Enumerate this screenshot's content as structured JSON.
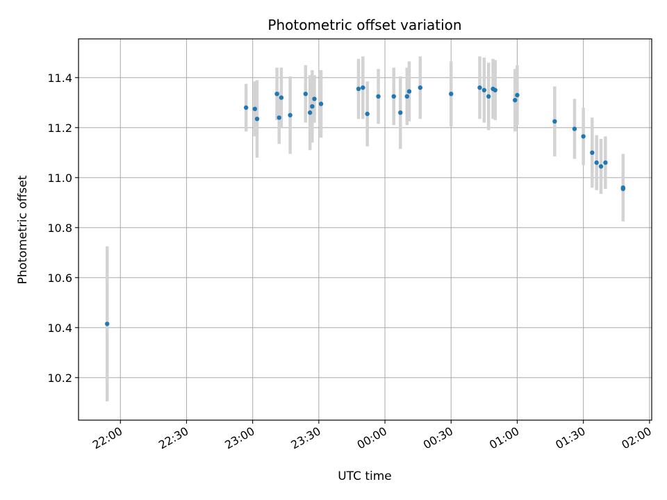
{
  "chart_data": {
    "type": "scatter",
    "title": "Photometric offset variation",
    "xlabel": "UTC time",
    "ylabel": "Photometric offset",
    "grid": true,
    "x_ticks": [
      "22:00",
      "22:30",
      "23:00",
      "23:30",
      "00:00",
      "00:30",
      "01:00",
      "01:30",
      "02:00"
    ],
    "y_ticks": [
      "10.2",
      "10.4",
      "10.6",
      "10.8",
      "11.0",
      "11.2",
      "11.4"
    ],
    "xlim": [
      "21:41",
      "02:01"
    ],
    "ylim": [
      10.03,
      11.555
    ],
    "colors": {
      "point": "#1f77b4",
      "errorbar": "#d3d3d3",
      "grid": "#b0b0b0"
    },
    "points": [
      {
        "t": "21:54",
        "y": 10.415,
        "err": 0.31
      },
      {
        "t": "22:57",
        "y": 11.28,
        "err": 0.095
      },
      {
        "t": "23:01",
        "y": 11.275,
        "err": 0.11
      },
      {
        "t": "23:02",
        "y": 11.235,
        "err": 0.155
      },
      {
        "t": "23:11",
        "y": 11.335,
        "err": 0.105
      },
      {
        "t": "23:12",
        "y": 11.24,
        "err": 0.105
      },
      {
        "t": "23:13",
        "y": 11.32,
        "err": 0.12
      },
      {
        "t": "23:17",
        "y": 11.25,
        "err": 0.155
      },
      {
        "t": "23:24",
        "y": 11.335,
        "err": 0.115
      },
      {
        "t": "23:26",
        "y": 11.26,
        "err": 0.15
      },
      {
        "t": "23:27",
        "y": 11.285,
        "err": 0.145
      },
      {
        "t": "23:28",
        "y": 11.315,
        "err": 0.095
      },
      {
        "t": "23:31",
        "y": 11.295,
        "err": 0.135
      },
      {
        "t": "23:48",
        "y": 11.355,
        "err": 0.12
      },
      {
        "t": "23:50",
        "y": 11.36,
        "err": 0.125
      },
      {
        "t": "23:52",
        "y": 11.255,
        "err": 0.13
      },
      {
        "t": "23:57",
        "y": 11.325,
        "err": 0.11
      },
      {
        "t": "00:04",
        "y": 11.325,
        "err": 0.115
      },
      {
        "t": "00:07",
        "y": 11.26,
        "err": 0.145
      },
      {
        "t": "00:10",
        "y": 11.325,
        "err": 0.115
      },
      {
        "t": "00:11",
        "y": 11.345,
        "err": 0.12
      },
      {
        "t": "00:16",
        "y": 11.36,
        "err": 0.125
      },
      {
        "t": "00:30",
        "y": 11.335,
        "err": 0.13
      },
      {
        "t": "00:43",
        "y": 11.36,
        "err": 0.125
      },
      {
        "t": "00:45",
        "y": 11.35,
        "err": 0.13
      },
      {
        "t": "00:47",
        "y": 11.325,
        "err": 0.135
      },
      {
        "t": "00:49",
        "y": 11.355,
        "err": 0.12
      },
      {
        "t": "00:50",
        "y": 11.35,
        "err": 0.12
      },
      {
        "t": "00:59",
        "y": 11.31,
        "err": 0.125
      },
      {
        "t": "01:00",
        "y": 11.33,
        "err": 0.12
      },
      {
        "t": "01:17",
        "y": 11.225,
        "err": 0.14
      },
      {
        "t": "01:26",
        "y": 11.195,
        "err": 0.12
      },
      {
        "t": "01:30",
        "y": 11.165,
        "err": 0.115
      },
      {
        "t": "01:34",
        "y": 11.1,
        "err": 0.14
      },
      {
        "t": "01:36",
        "y": 11.06,
        "err": 0.11
      },
      {
        "t": "01:38",
        "y": 11.045,
        "err": 0.11
      },
      {
        "t": "01:40",
        "y": 11.06,
        "err": 0.105
      },
      {
        "t": "01:48",
        "y": 10.955,
        "err": 0.13
      },
      {
        "t": "01:48",
        "y": 10.96,
        "err": 0.135
      }
    ]
  }
}
